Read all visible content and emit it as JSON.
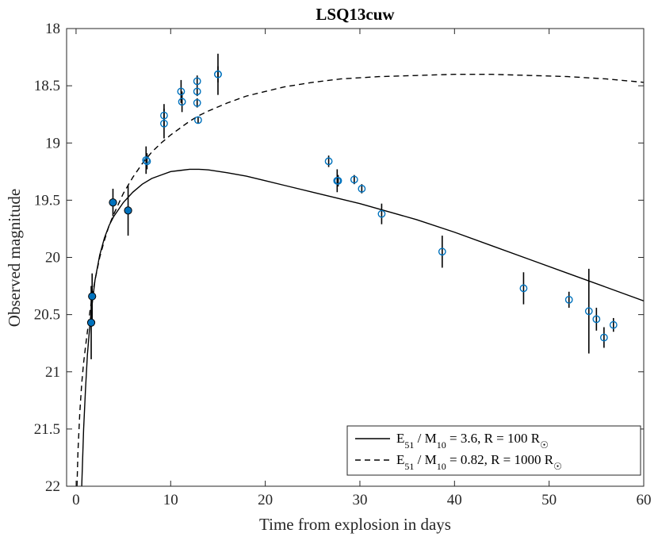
{
  "chart_data": {
    "type": "scatter",
    "title": "LSQ13cuw",
    "xlabel": "Time from explosion in days",
    "ylabel": "Observed magnitude",
    "xlim": [
      -1,
      60
    ],
    "ylim": [
      18,
      22
    ],
    "y_reversed": true,
    "xticks": [
      0,
      10,
      20,
      30,
      40,
      50,
      60
    ],
    "yticks": [
      18,
      18.5,
      19,
      19.5,
      20,
      20.5,
      21,
      21.5,
      22
    ],
    "grid": false,
    "legend_position": "bottom-right",
    "filled_points": [
      {
        "x": 1.6,
        "y": 20.57,
        "err": 0.32
      },
      {
        "x": 1.7,
        "y": 20.34,
        "err": 0.2
      },
      {
        "x": 3.9,
        "y": 19.52,
        "err": 0.12
      },
      {
        "x": 5.5,
        "y": 19.59,
        "err": 0.22
      }
    ],
    "open_points": [
      {
        "x": 7.4,
        "y": 19.15,
        "err": 0.12
      },
      {
        "x": 7.5,
        "y": 19.16,
        "err": 0.07
      },
      {
        "x": 9.3,
        "y": 18.76,
        "err": 0.1
      },
      {
        "x": 9.3,
        "y": 18.83,
        "err": 0.13
      },
      {
        "x": 11.1,
        "y": 18.55,
        "err": 0.1
      },
      {
        "x": 11.2,
        "y": 18.64,
        "err": 0.09
      },
      {
        "x": 12.8,
        "y": 18.46,
        "err": 0.05
      },
      {
        "x": 12.8,
        "y": 18.55,
        "err": 0.04
      },
      {
        "x": 12.8,
        "y": 18.65,
        "err": 0.04
      },
      {
        "x": 12.9,
        "y": 18.8,
        "err": 0.03
      },
      {
        "x": 15.0,
        "y": 18.4,
        "err": 0.18
      },
      {
        "x": 15.0,
        "y": 18.4,
        "err": 0.07
      },
      {
        "x": 26.7,
        "y": 19.16,
        "err": 0.05
      },
      {
        "x": 27.6,
        "y": 19.33,
        "err": 0.1
      },
      {
        "x": 27.7,
        "y": 19.33,
        "err": 0.05
      },
      {
        "x": 29.4,
        "y": 19.32,
        "err": 0.04
      },
      {
        "x": 30.2,
        "y": 19.4,
        "err": 0.04
      },
      {
        "x": 32.3,
        "y": 19.62,
        "err": 0.09
      },
      {
        "x": 38.7,
        "y": 19.95,
        "err": 0.14
      },
      {
        "x": 47.3,
        "y": 20.27,
        "err": 0.14
      },
      {
        "x": 52.1,
        "y": 20.37,
        "err": 0.07
      },
      {
        "x": 54.2,
        "y": 20.47,
        "err": 0.37
      },
      {
        "x": 55.0,
        "y": 20.54,
        "err": 0.1
      },
      {
        "x": 55.8,
        "y": 20.7,
        "err": 0.09
      },
      {
        "x": 56.8,
        "y": 20.59,
        "err": 0.06
      }
    ],
    "series": [
      {
        "name": "E51 / M10 = 3.6, R = 100 R☉",
        "style": "solid",
        "x": [
          0.6,
          0.8,
          1.0,
          1.2,
          1.5,
          2.0,
          2.5,
          3.0,
          3.5,
          4.0,
          5.0,
          6.0,
          7.0,
          8.0,
          9.0,
          10.0,
          11.0,
          12.0,
          13.0,
          14.0,
          16.0,
          18.0,
          20.0,
          22.0,
          25.0,
          28.0,
          30.0,
          33.0,
          36.0,
          40.0,
          44.0,
          48.0,
          52.0,
          56.0,
          60.0
        ],
        "y": [
          22.0,
          21.5,
          21.15,
          20.85,
          20.55,
          20.2,
          19.98,
          19.83,
          19.72,
          19.64,
          19.52,
          19.43,
          19.36,
          19.31,
          19.28,
          19.25,
          19.24,
          19.23,
          19.23,
          19.235,
          19.26,
          19.29,
          19.33,
          19.37,
          19.43,
          19.49,
          19.53,
          19.6,
          19.67,
          19.78,
          19.9,
          20.02,
          20.14,
          20.26,
          20.38
        ]
      },
      {
        "name": "E51 / M10 = 0.82, R = 1000 R☉",
        "style": "dashed",
        "x": [
          0.1,
          0.2,
          0.4,
          0.6,
          0.8,
          1.0,
          1.5,
          2.0,
          2.5,
          3.0,
          3.5,
          4.0,
          5.0,
          6.0,
          7.0,
          8.0,
          9.0,
          10.0,
          11.0,
          12.0,
          13.0,
          14.0,
          16.0,
          18.0,
          20.0,
          22.0,
          25.0,
          28.0,
          32.0,
          36.0,
          40.0,
          44.0,
          48.0,
          52.0,
          56.0,
          60.0
        ],
        "y": [
          22.0,
          21.7,
          21.35,
          21.1,
          20.92,
          20.78,
          20.45,
          20.2,
          20.0,
          19.85,
          19.72,
          19.62,
          19.44,
          19.3,
          19.18,
          19.08,
          19.0,
          18.93,
          18.87,
          18.81,
          18.76,
          18.72,
          18.65,
          18.59,
          18.55,
          18.51,
          18.47,
          18.44,
          18.42,
          18.41,
          18.4,
          18.4,
          18.41,
          18.42,
          18.44,
          18.47
        ]
      }
    ],
    "legend": [
      {
        "style": "solid",
        "e_label": "E",
        "e_sub": "51",
        "m_label": " / M",
        "m_sub": "10",
        "rest": " = 3.6, R = 100 R",
        "sun": "☉"
      },
      {
        "style": "dashed",
        "e_label": "E",
        "e_sub": "51",
        "m_label": " / M",
        "m_sub": "10",
        "rest": " = 0.82, R = 1000 R",
        "sun": "☉"
      }
    ]
  },
  "colors": {
    "point_fill": "#0072BD",
    "point_edge": "#0072BD",
    "filled_edge": "#000000",
    "errorbar": "#000000",
    "curve": "#000000"
  }
}
